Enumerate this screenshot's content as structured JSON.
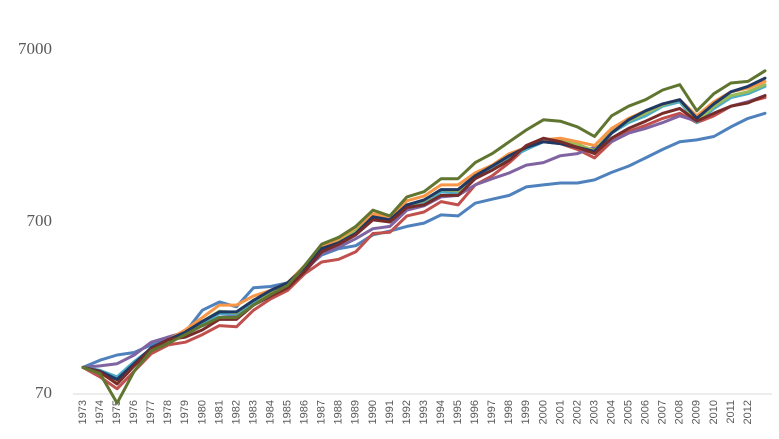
{
  "chart_data": {
    "type": "line",
    "yscale": "log",
    "categories": [
      "1973",
      "1974",
      "1975",
      "1976",
      "1977",
      "1978",
      "1979",
      "1980",
      "1981",
      "1982",
      "1983",
      "1984",
      "1985",
      "1986",
      "1987",
      "1988",
      "1989",
      "1990",
      "1991",
      "1992",
      "1993",
      "1994",
      "1995",
      "1996",
      "1997",
      "1998",
      "1999",
      "2000",
      "2001",
      "2002",
      "2003",
      "2004",
      "2005",
      "2006",
      "2007",
      "2008",
      "2009",
      "2010",
      "2011",
      "2012",
      null
    ],
    "ylim": [
      70,
      7000
    ],
    "yticks": [
      70,
      700,
      7000
    ],
    "series": [
      {
        "color": "#4f81bd",
        "values": [
          100,
          110,
          118,
          122,
          135,
          150,
          160,
          215,
          240,
          225,
          290,
          295,
          310,
          370,
          450,
          490,
          510,
          590,
          620,
          660,
          690,
          770,
          760,
          900,
          950,
          1000,
          1120,
          1150,
          1180,
          1180,
          1230,
          1360,
          1480,
          1650,
          1850,
          2050,
          2100,
          2200,
          2500,
          2800,
          3000
        ]
      },
      {
        "color": "#c0504d",
        "values": [
          100,
          88,
          75,
          95,
          120,
          135,
          140,
          155,
          175,
          172,
          215,
          250,
          280,
          350,
          410,
          425,
          470,
          600,
          610,
          760,
          800,
          920,
          880,
          1150,
          1300,
          1550,
          1900,
          2050,
          2000,
          1850,
          1650,
          2050,
          2350,
          2550,
          2800,
          3000,
          2650,
          2900,
          3300,
          3500,
          3700
        ]
      },
      {
        "color": "#8064a2",
        "values": [
          100,
          102,
          105,
          118,
          140,
          150,
          160,
          175,
          195,
          200,
          230,
          260,
          300,
          360,
          460,
          500,
          560,
          640,
          660,
          820,
          870,
          980,
          1000,
          1150,
          1250,
          1350,
          1500,
          1550,
          1700,
          1750,
          1900,
          2050,
          2300,
          2450,
          2650,
          2900,
          2700,
          3000,
          3300,
          3500,
          3800
        ]
      },
      {
        "color": "#4bacc6",
        "values": [
          100,
          96,
          88,
          108,
          128,
          140,
          155,
          180,
          205,
          205,
          240,
          270,
          300,
          380,
          480,
          530,
          610,
          740,
          700,
          860,
          900,
          1050,
          1030,
          1280,
          1450,
          1650,
          1850,
          2050,
          2050,
          1950,
          1800,
          2300,
          2650,
          2900,
          3300,
          3500,
          2650,
          3200,
          3700,
          3900,
          4300
        ]
      },
      {
        "color": "#9bbb59",
        "values": [
          100,
          95,
          84,
          104,
          126,
          142,
          158,
          185,
          212,
          208,
          246,
          272,
          305,
          385,
          490,
          545,
          625,
          760,
          720,
          880,
          930,
          1080,
          1060,
          1320,
          1480,
          1700,
          1900,
          2080,
          2080,
          1980,
          1820,
          2350,
          2720,
          3000,
          3350,
          3600,
          2700,
          3300,
          3800,
          4000,
          4400
        ]
      },
      {
        "color": "#f79646",
        "values": [
          100,
          92,
          82,
          105,
          128,
          145,
          165,
          195,
          230,
          230,
          260,
          280,
          310,
          390,
          500,
          560,
          650,
          780,
          750,
          930,
          990,
          1150,
          1150,
          1350,
          1500,
          1750,
          1900,
          2100,
          2150,
          2050,
          1950,
          2450,
          2800,
          3100,
          3400,
          3600,
          2900,
          3500,
          4000,
          4200,
          4600
        ]
      },
      {
        "color": "#1f3864",
        "values": [
          100,
          95,
          85,
          105,
          130,
          145,
          160,
          185,
          210,
          210,
          245,
          280,
          310,
          380,
          490,
          530,
          600,
          750,
          720,
          880,
          940,
          1080,
          1080,
          1300,
          1480,
          1700,
          1900,
          2050,
          2000,
          1900,
          1800,
          2300,
          2750,
          3100,
          3400,
          3600,
          2800,
          3400,
          4000,
          4300,
          4800
        ]
      },
      {
        "color": "#772c2a",
        "values": [
          100,
          94,
          80,
          102,
          128,
          145,
          150,
          165,
          190,
          190,
          230,
          260,
          290,
          360,
          470,
          520,
          590,
          720,
          700,
          850,
          880,
          1000,
          1000,
          1250,
          1400,
          1600,
          1950,
          2150,
          2050,
          1900,
          1750,
          2150,
          2450,
          2700,
          3000,
          3200,
          2700,
          3000,
          3300,
          3450,
          3800
        ]
      },
      {
        "color": "#5f7530",
        "values": [
          100,
          92,
          62,
          95,
          125,
          138,
          155,
          175,
          195,
          195,
          230,
          265,
          300,
          390,
          520,
          570,
          660,
          820,
          760,
          980,
          1050,
          1250,
          1250,
          1550,
          1750,
          2050,
          2400,
          2750,
          2700,
          2500,
          2200,
          2900,
          3300,
          3600,
          4100,
          4400,
          3100,
          3900,
          4500,
          4600,
          5300
        ]
      }
    ]
  }
}
